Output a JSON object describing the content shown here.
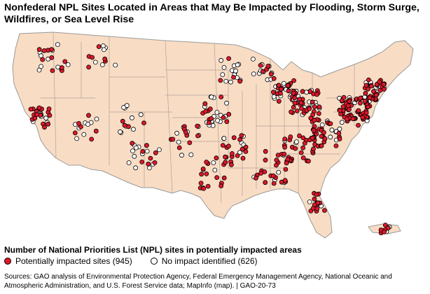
{
  "title": "Nonfederal NPL Sites Located in Areas that May Be Impacted by Flooding, Storm Surge, Wildfires, or Sea Level Rise",
  "legend": {
    "title": "Number of National Priorities List (NPL) sites in potentially impacted areas",
    "impacted_label": "Potentially impacted sites (945)",
    "no_impact_label": "No impact identified (626)"
  },
  "sources": "Sources: GAO analysis of Environmental Protection Agency, Federal Emergency Management Agency, National Oceanic and Atmospheric Administration, and U.S. Forest Service data; MapInfo (map).  |  GAO-20-73",
  "colors": {
    "land": "#f8dcc4",
    "state_border": "#9a9a9a",
    "impacted": "#e0182a",
    "no_impact": "#ffffff",
    "marker_outline": "#000000"
  },
  "counts": {
    "impacted": 945,
    "no_impact": 626
  }
}
